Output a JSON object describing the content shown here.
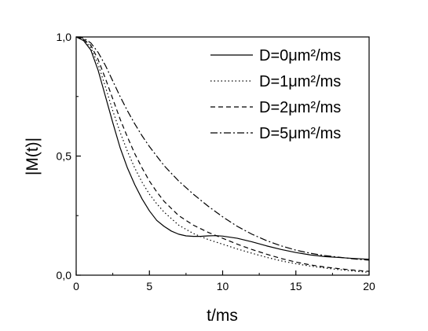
{
  "chart_data": {
    "type": "line",
    "xlabel": "t/ms",
    "ylabel": "|M(t)|",
    "xlim": [
      0,
      20
    ],
    "ylim": [
      0,
      1.0
    ],
    "xticks": [
      {
        "value": 0,
        "label": "0"
      },
      {
        "value": 5,
        "label": "5"
      },
      {
        "value": 10,
        "label": "10"
      },
      {
        "value": 15,
        "label": "15"
      },
      {
        "value": 20,
        "label": "20"
      }
    ],
    "yticks": [
      {
        "value": 0,
        "label": "0,0"
      },
      {
        "value": 0.5,
        "label": "0,5"
      },
      {
        "value": 1.0,
        "label": "1,0"
      }
    ],
    "grid": false,
    "legend_position": "top-right",
    "series": [
      {
        "name": "D=0μm²/ms",
        "dash": "solid",
        "x": [
          0,
          0.5,
          1,
          1.5,
          2,
          2.5,
          3,
          3.5,
          4,
          4.5,
          5,
          5.5,
          6,
          6.5,
          7,
          7.5,
          8,
          8.5,
          9,
          9.5,
          10,
          11,
          12,
          13,
          14,
          15,
          16,
          17,
          18,
          19,
          20
        ],
        "y": [
          1.0,
          0.985,
          0.945,
          0.86,
          0.75,
          0.64,
          0.535,
          0.45,
          0.38,
          0.32,
          0.27,
          0.23,
          0.205,
          0.185,
          0.172,
          0.165,
          0.163,
          0.163,
          0.165,
          0.166,
          0.164,
          0.155,
          0.14,
          0.123,
          0.108,
          0.095,
          0.085,
          0.078,
          0.074,
          0.07,
          0.067
        ]
      },
      {
        "name": "D=1μm²/ms",
        "dash": "dotted",
        "x": [
          0,
          0.5,
          1,
          1.5,
          2,
          2.5,
          3,
          3.5,
          4,
          4.5,
          5,
          5.5,
          6,
          7,
          8,
          9,
          10,
          11,
          12,
          13,
          14,
          15,
          16,
          17,
          18,
          19,
          20
        ],
        "y": [
          1.0,
          0.99,
          0.955,
          0.885,
          0.79,
          0.69,
          0.6,
          0.52,
          0.45,
          0.39,
          0.34,
          0.3,
          0.265,
          0.21,
          0.175,
          0.15,
          0.13,
          0.11,
          0.092,
          0.075,
          0.06,
          0.048,
          0.038,
          0.03,
          0.023,
          0.017,
          0.012
        ]
      },
      {
        "name": "D=2μm²/ms",
        "dash": "dashed",
        "x": [
          0,
          0.5,
          1,
          1.5,
          2,
          2.5,
          3,
          3.5,
          4,
          4.5,
          5,
          5.5,
          6,
          7,
          8,
          9,
          10,
          11,
          12,
          13,
          14,
          15,
          16,
          17,
          18,
          19,
          20
        ],
        "y": [
          1.0,
          0.99,
          0.965,
          0.905,
          0.825,
          0.74,
          0.655,
          0.58,
          0.51,
          0.45,
          0.395,
          0.35,
          0.31,
          0.25,
          0.21,
          0.18,
          0.155,
          0.13,
          0.108,
          0.088,
          0.07,
          0.055,
          0.043,
          0.034,
          0.027,
          0.021,
          0.016
        ]
      },
      {
        "name": "D=5μm²/ms",
        "dash": "dashdot",
        "x": [
          0,
          0.5,
          1,
          1.5,
          2,
          2.5,
          3,
          3.5,
          4,
          4.5,
          5,
          6,
          7,
          8,
          9,
          10,
          11,
          12,
          13,
          14,
          15,
          16,
          17,
          18,
          19,
          20
        ],
        "y": [
          1.0,
          0.995,
          0.975,
          0.935,
          0.88,
          0.815,
          0.75,
          0.69,
          0.635,
          0.585,
          0.54,
          0.46,
          0.395,
          0.34,
          0.29,
          0.245,
          0.205,
          0.172,
          0.145,
          0.123,
          0.105,
          0.092,
          0.082,
          0.075,
          0.068,
          0.063
        ]
      }
    ]
  }
}
